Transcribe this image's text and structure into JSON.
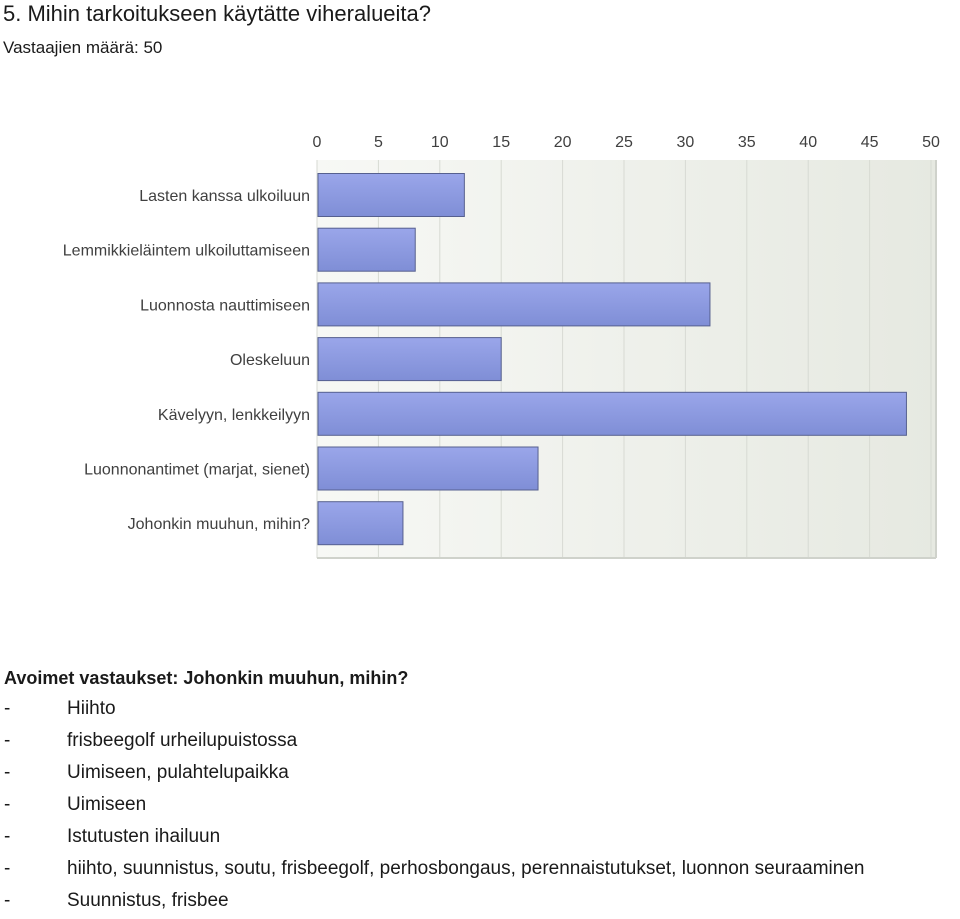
{
  "question": {
    "title": "5. Mihin tarkoitukseen käytätte viheralueita?",
    "respondents": "Vastaajien määrä: 50"
  },
  "chart_data": {
    "type": "bar",
    "orientation": "horizontal",
    "categories": [
      "Lasten kanssa ulkoiluun",
      "Lemmikkieläintem ulkoiluttamiseen",
      "Luonnosta nauttimiseen",
      "Oleskeluun",
      "Kävelyyn, lenkkeilyyn",
      "Luonnonantimet (marjat, sienet)",
      "Johonkin muuhun, mihin?"
    ],
    "values": [
      12,
      8,
      32,
      15,
      48,
      18,
      7
    ],
    "xlim": [
      0,
      50
    ],
    "ticks": [
      "0",
      "5",
      "10",
      "15",
      "20",
      "25",
      "30",
      "35",
      "40",
      "45",
      "50"
    ],
    "axis_position": "top",
    "grid": true,
    "bar_color": "#8c9ae0",
    "bar_edge_color": "#56608f",
    "plot_background": "#eef0ea"
  },
  "open_answers": {
    "heading": "Avoimet vastaukset: Johonkin muuhun, mihin?",
    "bullet": "-",
    "items": [
      "Hiihto",
      "frisbeegolf urheilupuistossa",
      "Uimiseen, pulahtelupaikka",
      "Uimiseen",
      "Istutusten ihailuun",
      "hiihto, suunnistus, soutu, frisbeegolf, perhosbongaus, perennaistutukset, luonnon seuraaminen",
      "Suunnistus, frisbee"
    ]
  }
}
